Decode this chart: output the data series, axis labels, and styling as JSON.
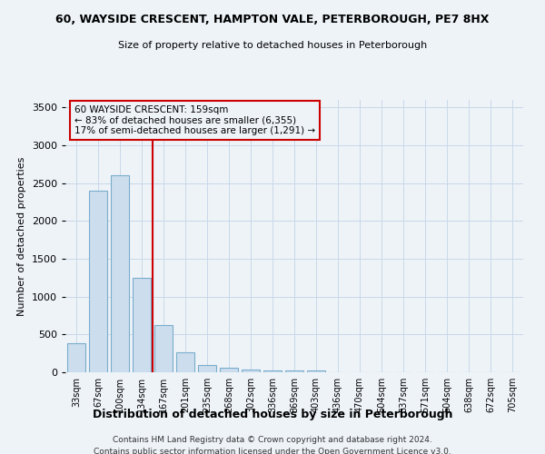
{
  "title1": "60, WAYSIDE CRESCENT, HAMPTON VALE, PETERBOROUGH, PE7 8HX",
  "title2": "Size of property relative to detached houses in Peterborough",
  "xlabel": "Distribution of detached houses by size in Peterborough",
  "ylabel": "Number of detached properties",
  "footnote1": "Contains HM Land Registry data © Crown copyright and database right 2024.",
  "footnote2": "Contains public sector information licensed under the Open Government Licence v3.0.",
  "annotation_line1": "60 WAYSIDE CRESCENT: 159sqm",
  "annotation_line2": "← 83% of detached houses are smaller (6,355)",
  "annotation_line3": "17% of semi-detached houses are larger (1,291) →",
  "categories": [
    "33sqm",
    "67sqm",
    "100sqm",
    "134sqm",
    "167sqm",
    "201sqm",
    "235sqm",
    "268sqm",
    "302sqm",
    "336sqm",
    "369sqm",
    "403sqm",
    "436sqm",
    "470sqm",
    "504sqm",
    "537sqm",
    "571sqm",
    "604sqm",
    "638sqm",
    "672sqm",
    "705sqm"
  ],
  "values": [
    380,
    2400,
    2600,
    1250,
    630,
    260,
    100,
    60,
    40,
    30,
    25,
    20,
    0,
    0,
    0,
    0,
    0,
    0,
    0,
    0,
    0
  ],
  "bar_color": "#ccdded",
  "bar_edge_color": "#7aadcc",
  "vline_color": "#cc0000",
  "box_edge_color": "#cc0000",
  "box_face_color": "#eef3f8",
  "grid_color": "#c8d8e8",
  "ylim": [
    0,
    3600
  ],
  "yticks": [
    0,
    500,
    1000,
    1500,
    2000,
    2500,
    3000,
    3500
  ],
  "bg_color": "#eef3f8",
  "title1_fontsize": 9,
  "title2_fontsize": 8,
  "xlabel_fontsize": 9,
  "ylabel_fontsize": 8,
  "tick_fontsize": 8,
  "xtick_fontsize": 7,
  "annot_fontsize": 7.5,
  "footnote_fontsize": 6.5,
  "vline_x_index": 4
}
